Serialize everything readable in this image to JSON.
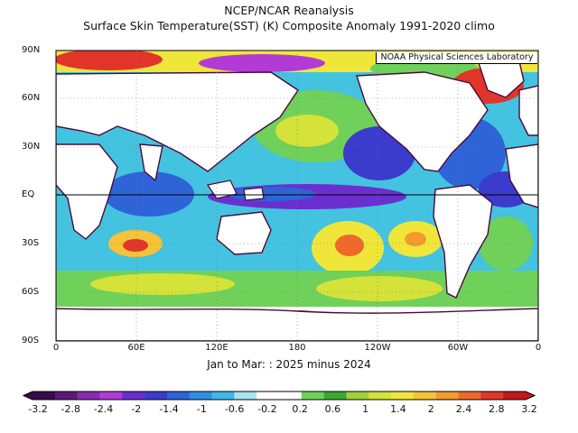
{
  "header": {
    "line1": "NCEP/NCAR Reanalysis",
    "line2": "Surface Skin Temperature(SST) (K) Composite Anomaly 1991-2020 climo"
  },
  "credit": "NOAA Physical Sciences Laboratory",
  "subtitle": "Jan to Mar: : 2025 minus 2024",
  "lat_labels": [
    "90N",
    "60N",
    "30N",
    "EQ",
    "30S",
    "60S",
    "90S"
  ],
  "lon_labels": [
    "0",
    "60E",
    "120E",
    "180",
    "120W",
    "60W",
    "0"
  ],
  "colorbar": {
    "labels": [
      "-3.2",
      "-2.8",
      "-2.4",
      "-2",
      "-1.4",
      "-1",
      "-0.6",
      "-0.2",
      "0.2",
      "0.6",
      "1",
      "1.4",
      "2",
      "2.4",
      "2.8",
      "3.2"
    ],
    "colors": [
      "#3a0a4a",
      "#5e1a78",
      "#8a2bb0",
      "#b23bd6",
      "#6b2fcf",
      "#3b3bcc",
      "#2f63d8",
      "#2f8fe0",
      "#3fb6ec",
      "#a9e3f5",
      "#ffffff",
      "#ffffff",
      "#6fd15a",
      "#3aa832",
      "#9fd13a",
      "#d4e23a",
      "#f0e63a",
      "#f5c23a",
      "#f59a2e",
      "#ee6a2a",
      "#e2352a",
      "#c21a1a"
    ]
  }
}
